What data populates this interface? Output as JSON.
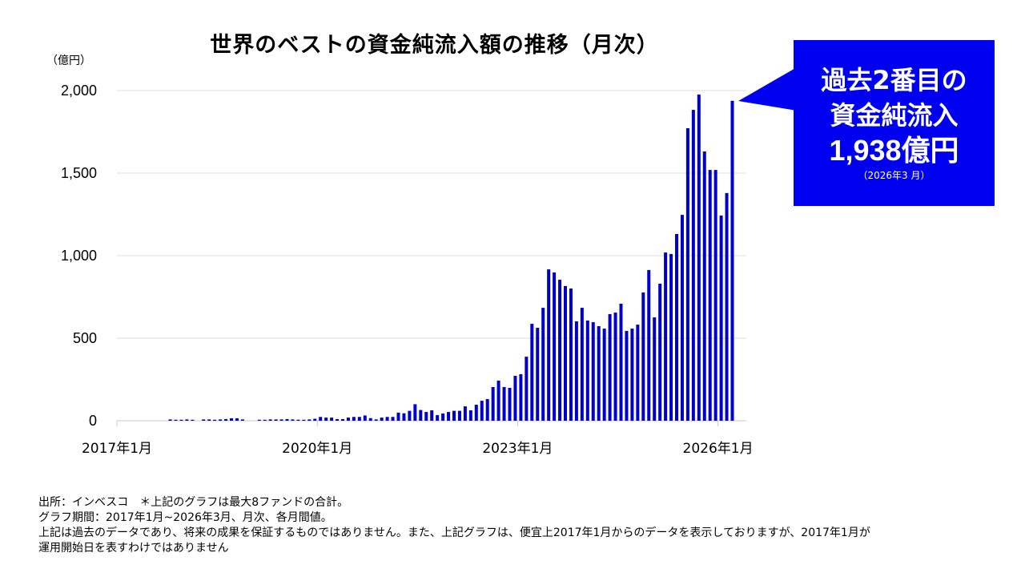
{
  "chart_data": {
    "type": "bar",
    "title": "世界のベストの資金純流入額の推移（月次）",
    "ylabel": "（億円）",
    "ylim": [
      0,
      2000
    ],
    "yticks": [
      0,
      500,
      1000,
      1500,
      2000
    ],
    "ytick_labels": [
      "0",
      "500",
      "1,000",
      "1,500",
      "2,000"
    ],
    "xtick_labels": [
      "2017年1月",
      "2020年1月",
      "2023年1月",
      "2026年1月"
    ],
    "x_start": "2017-01",
    "x_end": "2026-03",
    "grid": true,
    "bar_color": "#0000CC",
    "values": [
      0,
      0,
      0,
      0,
      0,
      0,
      0,
      0,
      0,
      8,
      6,
      6,
      8,
      6,
      0,
      8,
      8,
      6,
      8,
      10,
      15,
      15,
      8,
      0,
      0,
      6,
      6,
      8,
      8,
      8,
      10,
      8,
      6,
      6,
      8,
      12,
      23,
      19,
      19,
      10,
      10,
      19,
      23,
      23,
      32,
      16,
      8,
      19,
      23,
      23,
      49,
      45,
      60,
      100,
      65,
      53,
      63,
      34,
      44,
      53,
      60,
      60,
      87,
      63,
      97,
      121,
      131,
      204,
      243,
      204,
      199,
      272,
      282,
      388,
      587,
      563,
      684,
      917,
      898,
      854,
      816,
      801,
      602,
      684,
      607,
      597,
      573,
      558,
      646,
      655,
      709,
      544,
      558,
      582,
      777,
      913,
      626,
      830,
      1019,
      1010,
      1131,
      1247,
      1772,
      1883,
      1976,
      1631,
      1519,
      1519,
      1243,
      1379,
      1938
    ]
  },
  "callout": {
    "line1": "過去2番目の",
    "line2": "資金純流入",
    "line3": "1,938億円",
    "line4": "（2026年3 月）",
    "color": "#0000F0"
  },
  "notes": [
    "出所：インベスコ　＊上記のグラフは最大8ファンドの合計。",
    "グラフ期間：2017年1月~2026年3月、月次、各月間値。",
    "上記は過去のデータであり、将来の成果を保証するものではありません。また、上記グラフは、便宜上2017年1月からのデータを表示しておりますが、2017年1月が",
    "運用開始日を表すわけではありません"
  ]
}
